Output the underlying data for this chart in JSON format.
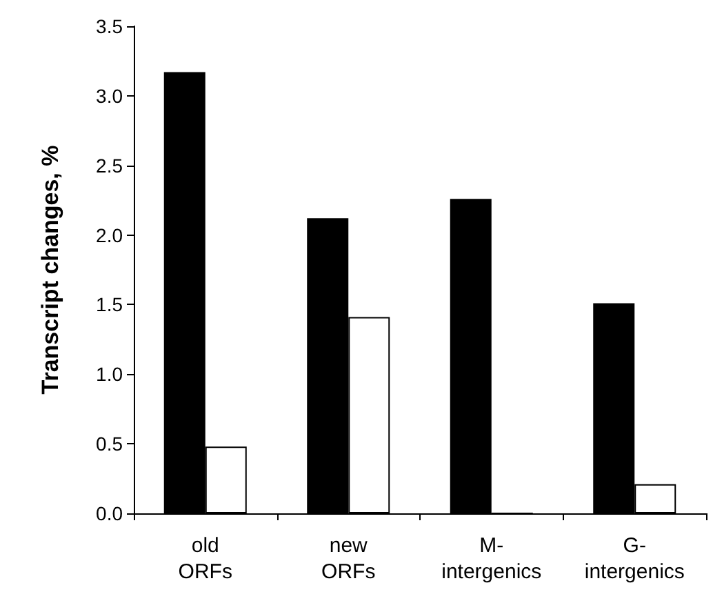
{
  "chart_data": {
    "type": "bar",
    "ylabel": "Transcript changes, %",
    "categories": [
      "old\nORFs",
      "new\nORFs",
      "M-\nintergenics",
      "G-\nintergenics"
    ],
    "series": [
      {
        "color": "#000000",
        "values": [
          3.17,
          2.12,
          2.26,
          1.51
        ]
      },
      {
        "color": "#ffffff",
        "values": [
          0.48,
          1.41,
          0,
          0.21
        ]
      }
    ],
    "ylim": [
      0,
      3.5
    ],
    "yticks": [
      {
        "value": 0,
        "label": "0.0"
      },
      {
        "value": 0.5,
        "label": "0.5"
      },
      {
        "value": 1,
        "label": "1.0"
      },
      {
        "value": 1.5,
        "label": "1.5"
      },
      {
        "value": 2,
        "label": "2.0"
      },
      {
        "value": 2.5,
        "label": "2.5"
      },
      {
        "value": 3,
        "label": "3.0"
      },
      {
        "value": 3.5,
        "label": "3.5"
      }
    ],
    "grid": false,
    "legend": false
  }
}
